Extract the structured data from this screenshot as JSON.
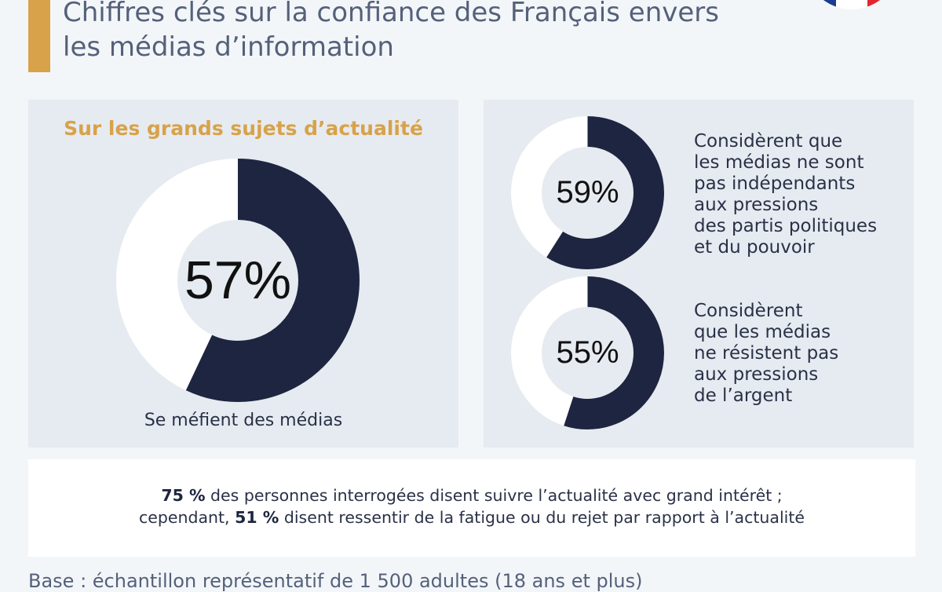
{
  "header": {
    "title_line1": "Chiffres clés sur la confiance des Français envers",
    "title_line2": "les médias d’information",
    "colors": {
      "accent": "#d8a24a",
      "navy": "#1d2540"
    },
    "flag_icon": "france-flag-icon"
  },
  "left_panel": {
    "heading": "Sur les grands sujets d’actualité",
    "caption": "Se méfient des médias"
  },
  "right_panel": {
    "item1_lines": [
      "Considèrent que",
      "les médias ne sont",
      "pas indépendants",
      "aux pressions",
      "des partis politiques",
      "et du pouvoir"
    ],
    "item2_lines": [
      "Considèrent",
      "que les médias",
      "ne résistent pas",
      "aux pressions",
      "de l’argent"
    ]
  },
  "chart_data": [
    {
      "type": "pie",
      "title": "Sur les grands sujets d’actualité",
      "label": "57%",
      "value": 57,
      "caption": "Se méfient des médias"
    },
    {
      "type": "pie",
      "label": "59%",
      "value": 59
    },
    {
      "type": "pie",
      "label": "55%",
      "value": 55
    }
  ],
  "note": {
    "line1_bold": "75 %",
    "line1_rest": " des personnes interrogées disent suivre l’actualité avec grand intérêt ;",
    "line2_start": "cependant, ",
    "line2_bold": "51 %",
    "line2_rest": " disent ressentir de la fatigue ou du rejet par rapport à l’actualité"
  },
  "footnote": "Base : échantillon représentatif de 1 500 adultes (18 ans et plus)"
}
